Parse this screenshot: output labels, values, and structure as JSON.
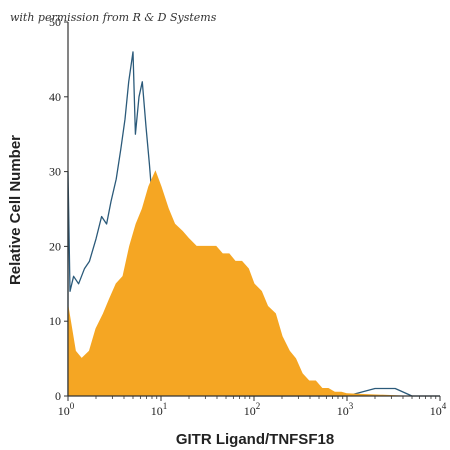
{
  "watermark": "with permission from R & D Systems",
  "chart_data": {
    "type": "histogram",
    "xlabel": "GITR Ligand/TNFSF18",
    "ylabel": "Relative Cell Number",
    "x_scale": "log",
    "xlim": [
      1,
      10000
    ],
    "ylim": [
      0,
      50
    ],
    "x_ticks": [
      {
        "value": 1,
        "base": "10",
        "exp": "0"
      },
      {
        "value": 10,
        "base": "10",
        "exp": "1"
      },
      {
        "value": 100,
        "base": "10",
        "exp": "2"
      },
      {
        "value": 1000,
        "base": "10",
        "exp": "3"
      },
      {
        "value": 10000,
        "base": "10",
        "exp": "4"
      }
    ],
    "y_ticks": [
      {
        "value": 0,
        "label": "0"
      },
      {
        "value": 10,
        "label": "10"
      },
      {
        "value": 20,
        "label": "20"
      },
      {
        "value": 30,
        "label": "30"
      },
      {
        "value": 40,
        "label": "40"
      },
      {
        "value": 50,
        "label": "50"
      }
    ],
    "colors": {
      "stained": "#F5A623",
      "control": "#2B5A7A"
    },
    "series": [
      {
        "style": "filled",
        "x": [
          1,
          1.2,
          1.4,
          1.7,
          2,
          2.4,
          2.8,
          3.3,
          3.9,
          4.6,
          5.4,
          6.3,
          7.4,
          8.7,
          10,
          12,
          14,
          17,
          20,
          24,
          28,
          33,
          39,
          46,
          54,
          63,
          74,
          87,
          100,
          120,
          140,
          170,
          200,
          240,
          280,
          330,
          390,
          460,
          540,
          630,
          740,
          870,
          1000,
          1500,
          2500,
          4000,
          10000
        ],
        "y": [
          12,
          6,
          5,
          6,
          9,
          11,
          13,
          15,
          16,
          20,
          23,
          25,
          28,
          30,
          28,
          25,
          23,
          22,
          21,
          20,
          20,
          20,
          20,
          19,
          19,
          18,
          18,
          17,
          15,
          14,
          12,
          11,
          8,
          6,
          5,
          3,
          2,
          2,
          1,
          1,
          0.5,
          0.5,
          0.3,
          0.2,
          0.1,
          0,
          0
        ]
      },
      {
        "style": "outline",
        "x": [
          1,
          1.05,
          1.15,
          1.3,
          1.5,
          1.7,
          2,
          2.3,
          2.6,
          2.9,
          3.3,
          3.7,
          4.1,
          4.5,
          5,
          5.3,
          5.8,
          6.3,
          6.9,
          7.5,
          8.2,
          9,
          10,
          11,
          12,
          13,
          14,
          15,
          16,
          17,
          18,
          19,
          20,
          22,
          24,
          27,
          30,
          35,
          40,
          50,
          60,
          80,
          100,
          200,
          500,
          1000,
          2000,
          3300,
          5000,
          10000
        ],
        "y": [
          30,
          14,
          16,
          15,
          17,
          18,
          21,
          24,
          23,
          26,
          29,
          33,
          37,
          42,
          46,
          35,
          40,
          42,
          36,
          31,
          25,
          20,
          17,
          15,
          12,
          10,
          8,
          6,
          5,
          4,
          3,
          3,
          2,
          1,
          1,
          1,
          1,
          1,
          1,
          0,
          0,
          0,
          0,
          0,
          0,
          0,
          1,
          1,
          0,
          0
        ]
      }
    ]
  }
}
